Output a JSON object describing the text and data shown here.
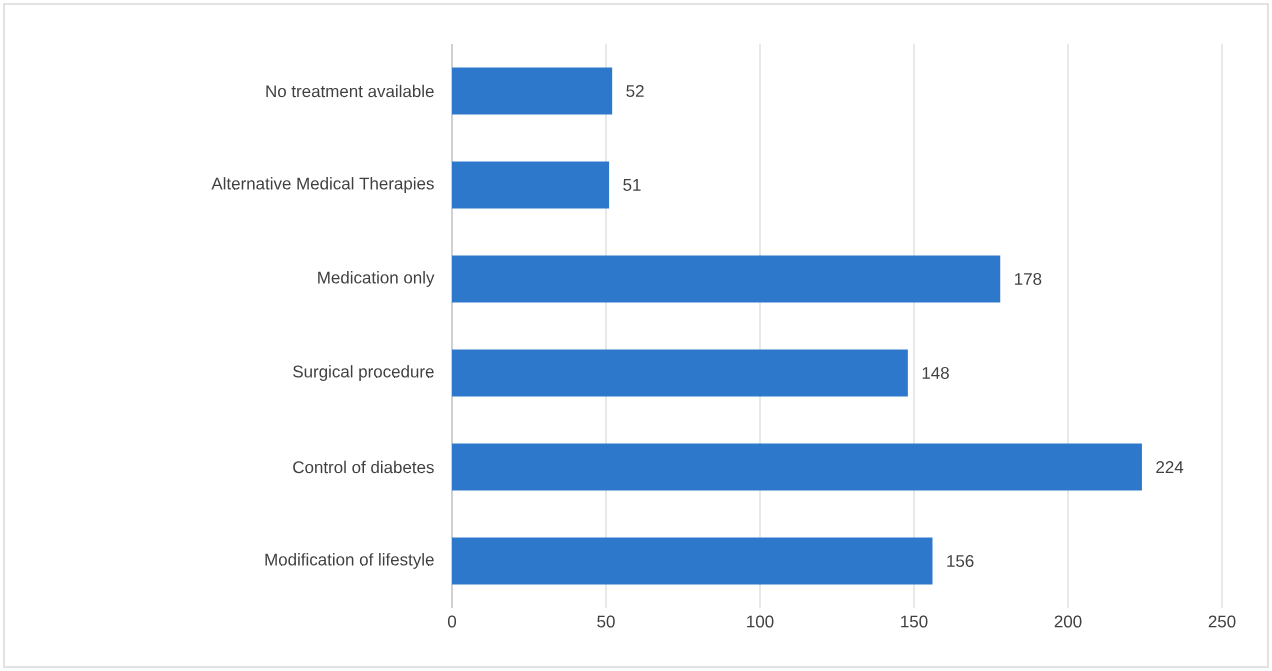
{
  "chart_data": {
    "type": "bar",
    "orientation": "horizontal",
    "categories": [
      "No treatment available",
      "Alternative Medical Therapies",
      "Medication only",
      "Surgical procedure",
      "Control of diabetes",
      "Modification of lifestyle"
    ],
    "values": [
      52,
      51,
      178,
      148,
      224,
      156
    ],
    "color": "#2e78cc",
    "xlim": [
      0,
      250
    ],
    "xticks": [
      0,
      50,
      100,
      150,
      200,
      250
    ],
    "grid": "x",
    "data_labels": true
  }
}
